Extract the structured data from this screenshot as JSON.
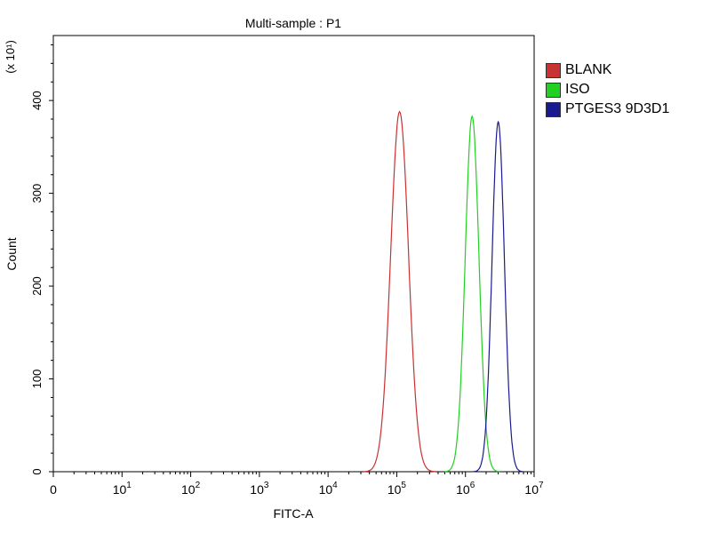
{
  "chart_data": {
    "type": "histogram",
    "title": "Multi-sample : P1",
    "xlabel": "FITC-A",
    "ylabel": "Count",
    "y_multiplier": "(x 10¹)",
    "x_scale": "log",
    "xlim_log10": [
      0,
      7
    ],
    "ylim": [
      0,
      470
    ],
    "x_ticks": [
      {
        "label": "0"
      },
      {
        "label": "10",
        "exp": "1"
      },
      {
        "label": "10",
        "exp": "2"
      },
      {
        "label": "10",
        "exp": "3"
      },
      {
        "label": "10",
        "exp": "4"
      },
      {
        "label": "10",
        "exp": "5"
      },
      {
        "label": "10",
        "exp": "6"
      },
      {
        "label": "10",
        "exp": "7"
      }
    ],
    "y_ticks": [
      0,
      100,
      200,
      300,
      400
    ],
    "legend_position": "right",
    "series": [
      {
        "name": "BLANK",
        "color": "#c83232",
        "peak_fitc": 110000,
        "peak_count": 388,
        "log10_width": 0.13
      },
      {
        "name": "ISO",
        "color": "#22d022",
        "peak_fitc": 1250000,
        "peak_count": 383,
        "log10_width": 0.1
      },
      {
        "name": "PTGES3 9D3D1",
        "color": "#1a1a90",
        "peak_fitc": 3000000,
        "peak_count": 377,
        "log10_width": 0.09
      }
    ]
  }
}
